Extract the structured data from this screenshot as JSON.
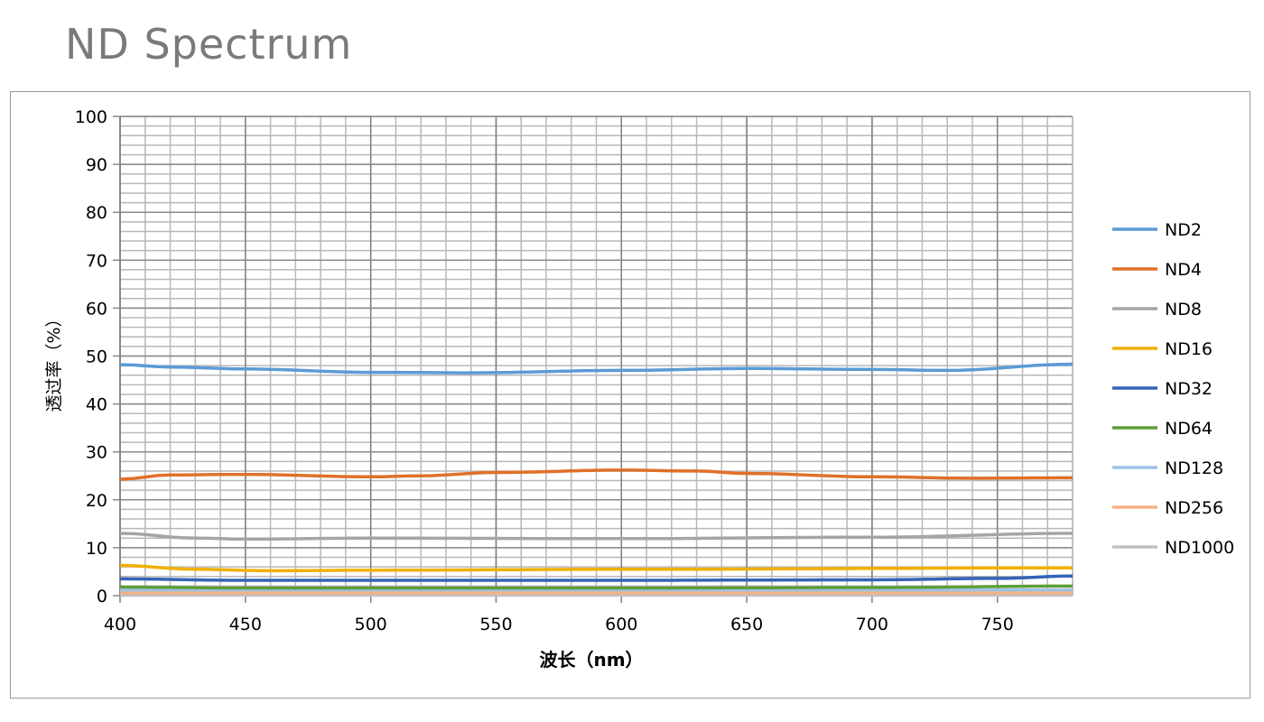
{
  "title": "ND Spectrum",
  "chart_data": {
    "type": "line",
    "title": "",
    "xlabel": "波长（nm）",
    "ylabel": "透过率（%）",
    "xlim": [
      400,
      780
    ],
    "ylim": [
      0,
      100
    ],
    "xticks": [
      400,
      450,
      500,
      550,
      600,
      650,
      700,
      750
    ],
    "yticks": [
      0,
      10,
      20,
      30,
      40,
      50,
      60,
      70,
      80,
      90,
      100
    ],
    "grid": true,
    "legend": "right",
    "series": [
      {
        "name": "ND2",
        "color": "#5b9bd5",
        "x": [
          400,
          420,
          450,
          500,
          540,
          600,
          650,
          700,
          730,
          780
        ],
        "y": [
          48.2,
          47.7,
          47.3,
          46.6,
          46.5,
          47.0,
          47.4,
          47.2,
          47.0,
          48.3
        ]
      },
      {
        "name": "ND4",
        "color": "#e07028",
        "x": [
          400,
          420,
          450,
          500,
          520,
          550,
          600,
          630,
          650,
          700,
          740,
          780
        ],
        "y": [
          24.3,
          25.2,
          25.3,
          24.8,
          25.0,
          25.7,
          26.2,
          26.0,
          25.5,
          24.8,
          24.5,
          24.6
        ]
      },
      {
        "name": "ND8",
        "color": "#a5a5a5",
        "x": [
          400,
          430,
          450,
          500,
          600,
          700,
          780
        ],
        "y": [
          13.0,
          12.0,
          11.8,
          12.0,
          11.9,
          12.2,
          13.0
        ]
      },
      {
        "name": "ND16",
        "color": "#f0b000",
        "x": [
          400,
          430,
          460,
          500,
          600,
          780
        ],
        "y": [
          6.3,
          5.5,
          5.2,
          5.3,
          5.5,
          5.8
        ]
      },
      {
        "name": "ND32",
        "color": "#3563b8",
        "x": [
          400,
          450,
          600,
          700,
          750,
          780
        ],
        "y": [
          3.5,
          3.2,
          3.2,
          3.3,
          3.6,
          4.1
        ]
      },
      {
        "name": "ND64",
        "color": "#5f9e3a",
        "x": [
          400,
          450,
          600,
          700,
          780
        ],
        "y": [
          1.8,
          1.6,
          1.6,
          1.7,
          2.0
        ]
      },
      {
        "name": "ND128",
        "color": "#9dc3e6",
        "x": [
          400,
          780
        ],
        "y": [
          1.2,
          1.2
        ]
      },
      {
        "name": "ND256",
        "color": "#f4b183",
        "x": [
          400,
          780
        ],
        "y": [
          0.6,
          0.6
        ]
      },
      {
        "name": "ND1000",
        "color": "#c0c0c0",
        "x": [
          400,
          780
        ],
        "y": [
          0.1,
          0.1
        ]
      }
    ]
  }
}
